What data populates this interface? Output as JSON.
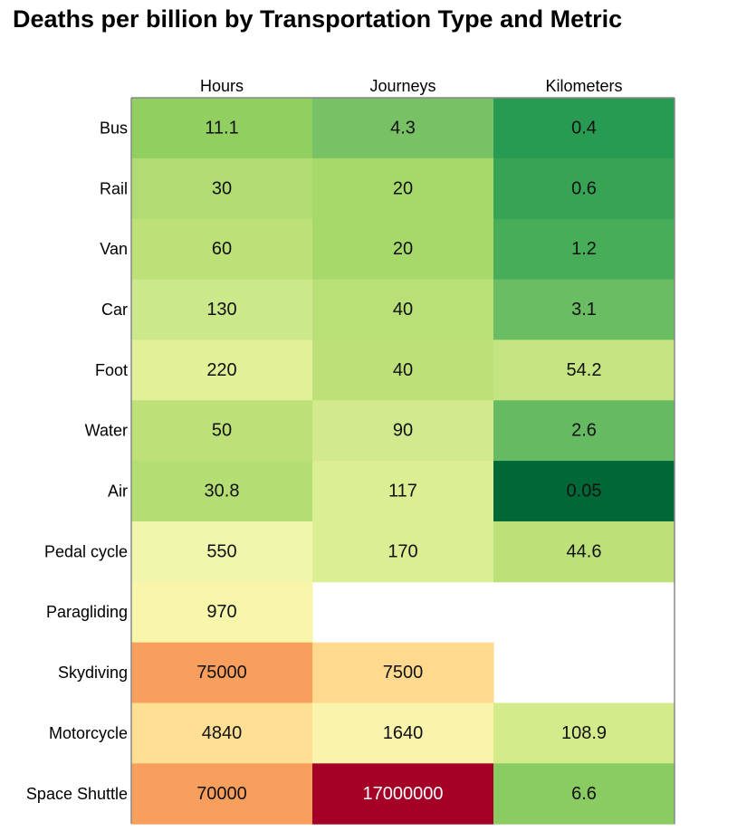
{
  "chart_data": {
    "type": "heatmap",
    "title": "Deaths per billion by Transportation Type and Metric",
    "columns": [
      "Hours",
      "Journeys",
      "Kilometers"
    ],
    "rows": [
      "Bus",
      "Rail",
      "Van",
      "Car",
      "Foot",
      "Water",
      "Air",
      "Pedal cycle",
      "Paragliding",
      "Skydiving",
      "Motorcycle",
      "Space Shuttle"
    ],
    "values": [
      [
        11.1,
        4.3,
        0.4
      ],
      [
        30,
        20,
        0.6
      ],
      [
        60,
        20,
        1.2
      ],
      [
        130,
        40,
        3.1
      ],
      [
        220,
        40,
        54.2
      ],
      [
        50,
        90,
        2.6
      ],
      [
        30.8,
        117,
        0.05
      ],
      [
        550,
        170,
        44.6
      ],
      [
        970,
        null,
        null
      ],
      [
        75000,
        7500,
        null
      ],
      [
        4840,
        1640,
        108.9
      ],
      [
        70000,
        17000000,
        6.6
      ]
    ],
    "value_labels": [
      [
        "11.1",
        "4.3",
        "0.4"
      ],
      [
        "30",
        "20",
        "0.6"
      ],
      [
        "60",
        "20",
        "1.2"
      ],
      [
        "130",
        "40",
        "3.1"
      ],
      [
        "220",
        "40",
        "54.2"
      ],
      [
        "50",
        "90",
        "2.6"
      ],
      [
        "30.8",
        "117",
        "0.05"
      ],
      [
        "550",
        "170",
        "44.6"
      ],
      [
        "970",
        "",
        ""
      ],
      [
        "75000",
        "7500",
        ""
      ],
      [
        "4840",
        "1640",
        "108.9"
      ],
      [
        "70000",
        "17000000",
        "6.6"
      ]
    ],
    "cell_colors": [
      [
        "#91cf60",
        "#78c265",
        "#279b51"
      ],
      [
        "#b1dc73",
        "#a6d96a",
        "#36a355"
      ],
      [
        "#bde178",
        "#a6d96a",
        "#47ad59"
      ],
      [
        "#cbe88a",
        "#b9df77",
        "#6bbd63"
      ],
      [
        "#e2f198",
        "#bde178",
        "#c5e482"
      ],
      [
        "#bde178",
        "#d2ea8d",
        "#66ba62"
      ],
      [
        "#b4dd73",
        "#dbee94",
        "#006837"
      ],
      [
        "#f0f7ad",
        "#dbee94",
        "#bde178"
      ],
      [
        "#f7f6ab",
        null,
        null
      ],
      [
        "#f99f5d",
        "#fed98e",
        null
      ],
      [
        "#fedf93",
        "#f9f3ab",
        "#d4eb8c"
      ],
      [
        "#f99f5d",
        "#a50026",
        "#8acb62"
      ]
    ],
    "scale": "log",
    "colormap": "RdYlGn_r",
    "grid": false,
    "legend": "none"
  }
}
